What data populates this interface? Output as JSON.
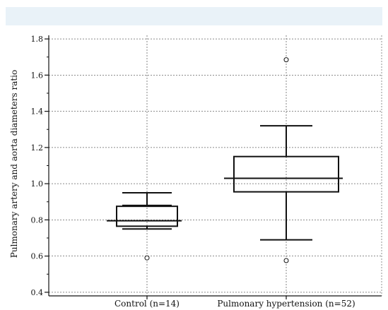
{
  "chart_data": {
    "type": "box",
    "title": "",
    "xlabel": "",
    "ylabel": "Pulmonary artery and aorta diameters ratio",
    "ylim": [
      0.38,
      1.82
    ],
    "yticks": [
      0.4,
      0.6,
      0.8,
      1.0,
      1.2,
      1.4,
      1.6,
      1.8
    ],
    "ytick_labels": [
      "0.4",
      "0.6",
      "0.8",
      "1.0",
      "1.2",
      "1.4",
      "1.6",
      "1.8"
    ],
    "grid": true,
    "categories": [
      "Control (n=14)",
      "Pulmonary hypertension (n=52)"
    ],
    "boxes": [
      {
        "whisker_low": 0.75,
        "q1": 0.765,
        "median": 0.795,
        "q3": 0.875,
        "whisker_high": 0.95,
        "extra_line": 0.88,
        "outliers": [
          0.59
        ]
      },
      {
        "whisker_low": 0.69,
        "q1": 0.955,
        "median": 1.03,
        "q3": 1.15,
        "whisker_high": 1.32,
        "outliers": [
          1.685,
          0.575
        ]
      }
    ],
    "colors": {
      "band": "#e9f2f8",
      "line": "#111111",
      "grid": "#555555"
    }
  }
}
